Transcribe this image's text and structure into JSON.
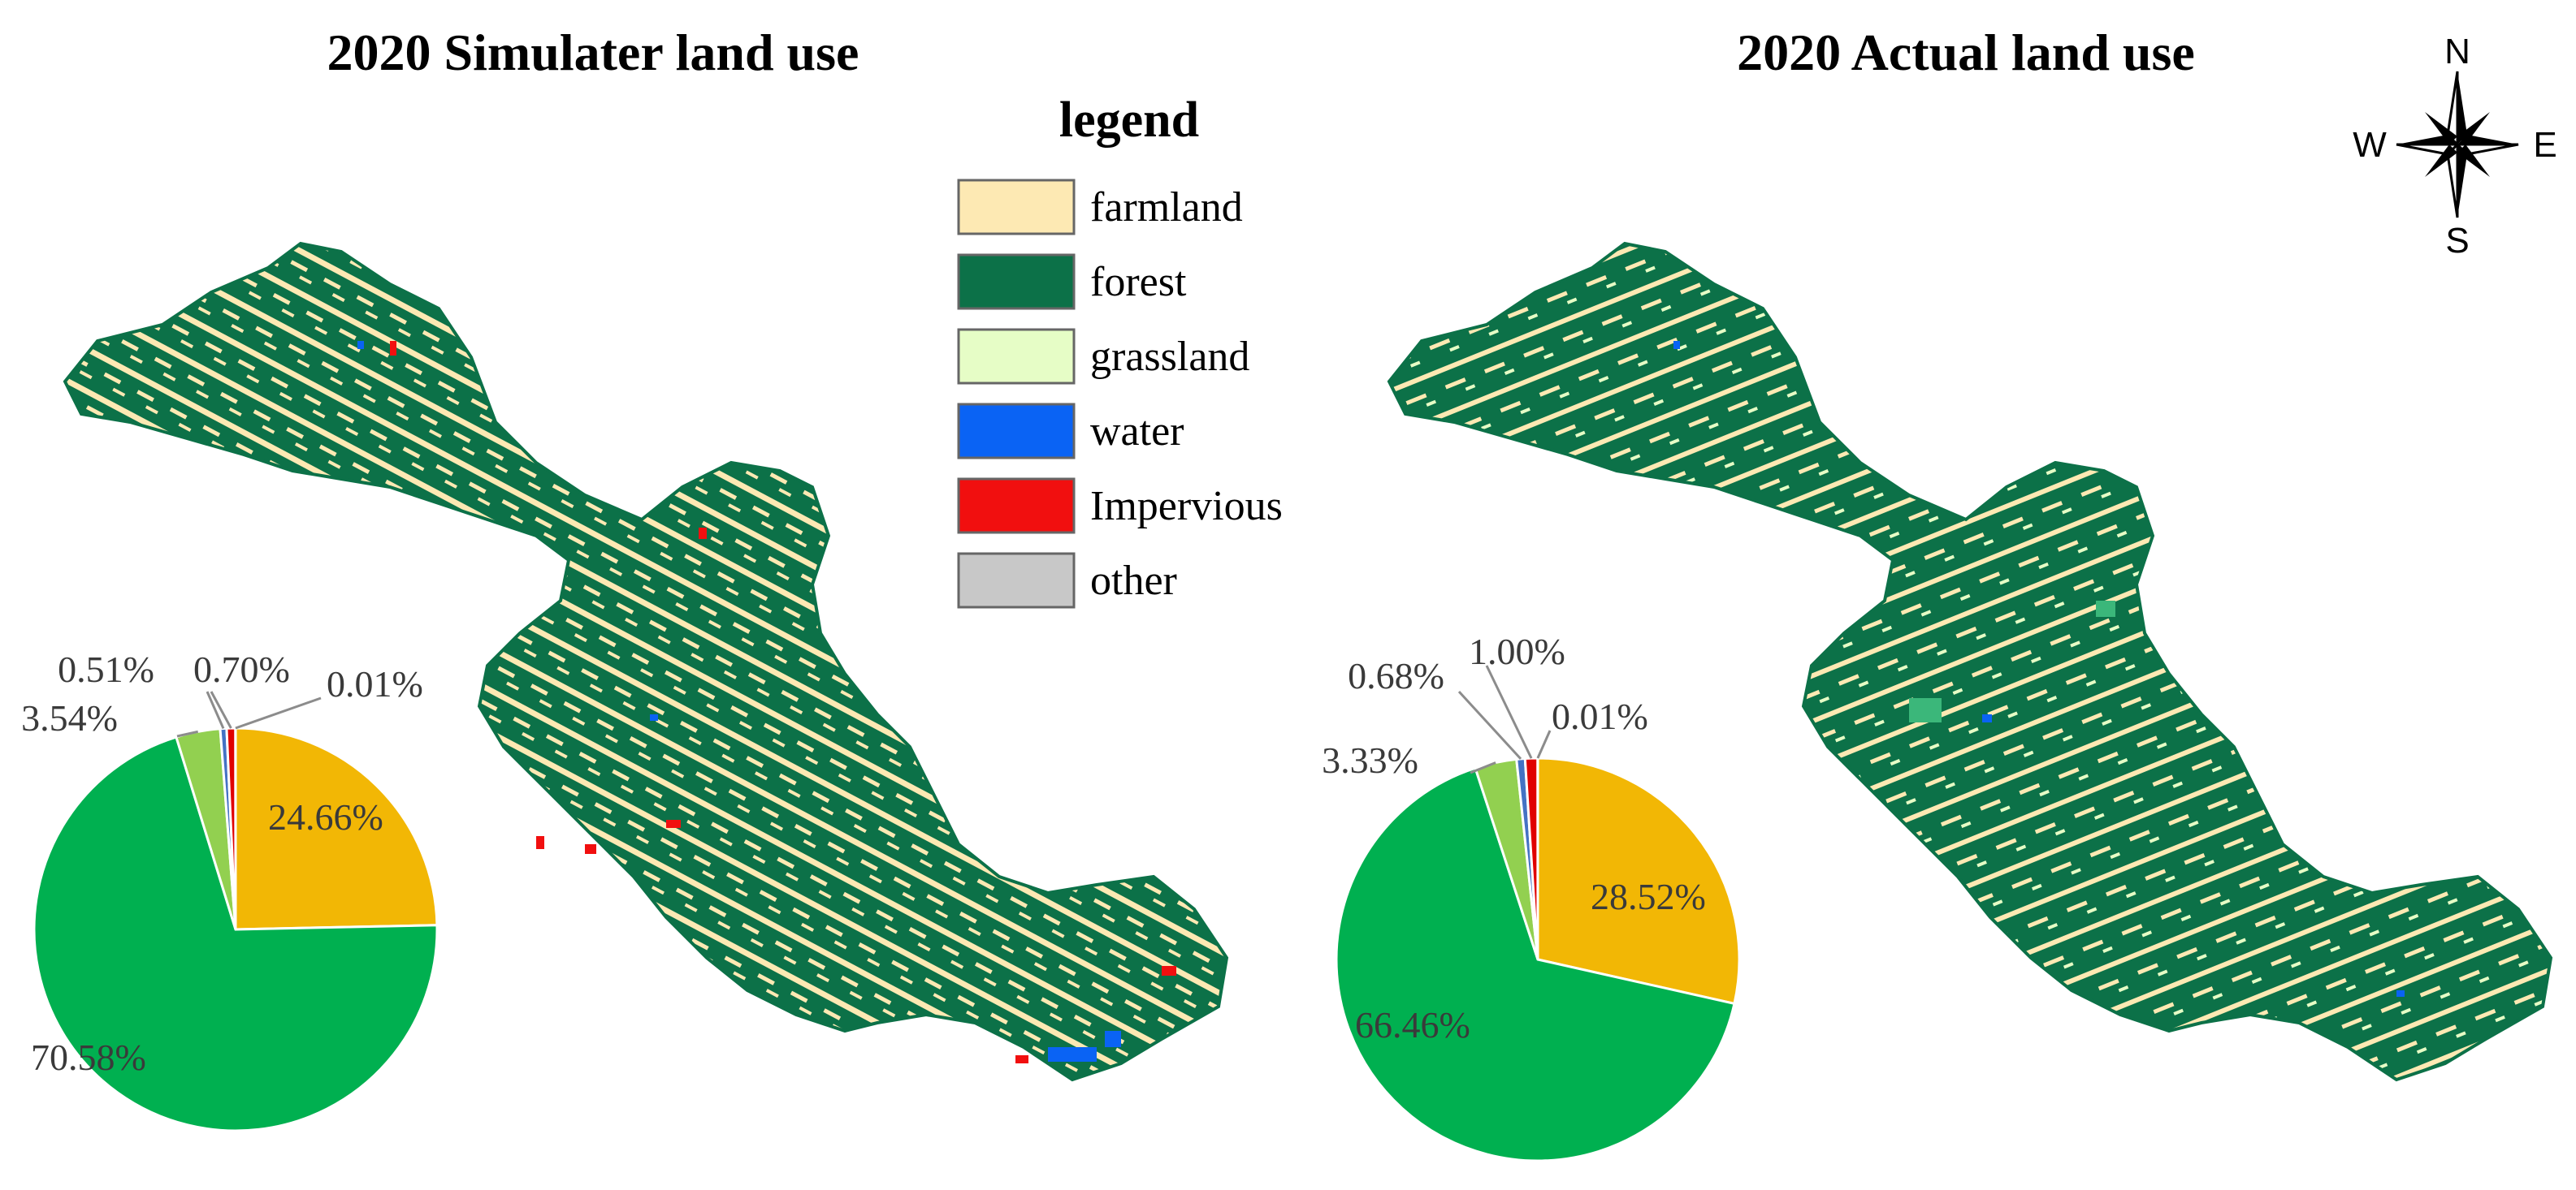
{
  "titles": {
    "left": "2020 Simulater land use",
    "right": "2020 Actual land use"
  },
  "legend": {
    "title": "legend",
    "items": [
      {
        "label": "farmland",
        "color": "#fde9b3"
      },
      {
        "label": "forest",
        "color": "#0c7148"
      },
      {
        "label": "grassland",
        "color": "#e6fdc6"
      },
      {
        "label": "water",
        "color": "#0a63f4"
      },
      {
        "label": "Impervious",
        "color": "#f10f0f"
      },
      {
        "label": "other",
        "color": "#c8c8c8"
      }
    ]
  },
  "compass": {
    "n": "N",
    "s": "S",
    "e": "E",
    "w": "W",
    "icon": "compass-rose-icon"
  },
  "chart_data": [
    {
      "type": "pie",
      "name_ref": "left",
      "slices": [
        {
          "category": "farmland",
          "value": 24.66,
          "label": "24.66%",
          "color": "#f2b705"
        },
        {
          "category": "forest",
          "value": 70.58,
          "label": "70.58%",
          "color": "#00b050"
        },
        {
          "category": "grassland",
          "value": 3.54,
          "label": "3.54%",
          "color": "#92d050"
        },
        {
          "category": "water",
          "value": 0.51,
          "label": "0.51%",
          "color": "#4472c4"
        },
        {
          "category": "Impervious",
          "value": 0.7,
          "label": "0.70%",
          "color": "#e00000"
        },
        {
          "category": "other",
          "value": 0.01,
          "label": "0.01%",
          "color": "#bfbfbf"
        }
      ]
    },
    {
      "type": "pie",
      "name_ref": "right",
      "slices": [
        {
          "category": "farmland",
          "value": 28.52,
          "label": "28.52%",
          "color": "#f2b705"
        },
        {
          "category": "forest",
          "value": 66.46,
          "label": "66.46%",
          "color": "#00b050"
        },
        {
          "category": "grassland",
          "value": 3.33,
          "label": "3.33%",
          "color": "#92d050"
        },
        {
          "category": "water",
          "value": 0.68,
          "label": "0.68%",
          "color": "#4472c4"
        },
        {
          "category": "Impervious",
          "value": 1.0,
          "label": "1.00%",
          "color": "#e00000"
        },
        {
          "category": "other",
          "value": 0.01,
          "label": "0.01%",
          "color": "#bfbfbf"
        }
      ]
    }
  ]
}
